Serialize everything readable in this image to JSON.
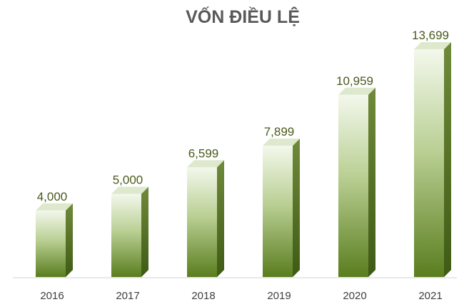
{
  "chart_data": {
    "type": "bar",
    "title": "VỐN ĐIỀU LỆ",
    "categories": [
      "2016",
      "2017",
      "2018",
      "2019",
      "2020",
      "2021"
    ],
    "values": [
      4000,
      5000,
      6599,
      7899,
      10959,
      13699
    ],
    "value_labels": [
      "4,000",
      "5,000",
      "6,599",
      "7,899",
      "10,959",
      "13,699"
    ],
    "xlabel": "",
    "ylabel": "",
    "ylim": [
      0,
      14000
    ],
    "grid": false,
    "legend": "none",
    "style": "3d-column",
    "colors": {
      "bar_top": "#f3f8ec",
      "bar_bottom": "#5a7d1e",
      "bar_side": "#3f5a14",
      "bar_cap": "#dde8cc",
      "axis": "#d0d0d0"
    }
  }
}
